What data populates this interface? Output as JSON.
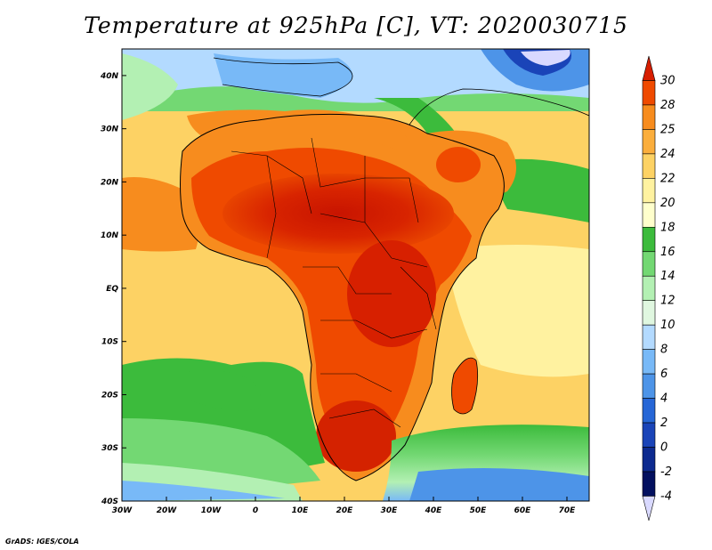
{
  "title": "Temperature at 925hPa [C], VT: 2020030715",
  "credit": "GrADS: IGES/COLA",
  "map": {
    "projection": "lat-lon",
    "lon_range": [
      -30,
      75
    ],
    "lat_range": [
      -40,
      45
    ],
    "lat_ticks": [
      {
        "value": 40,
        "label": "40N"
      },
      {
        "value": 30,
        "label": "30N"
      },
      {
        "value": 20,
        "label": "20N"
      },
      {
        "value": 10,
        "label": "10N"
      },
      {
        "value": 0,
        "label": "EQ"
      },
      {
        "value": -10,
        "label": "10S"
      },
      {
        "value": -20,
        "label": "20S"
      },
      {
        "value": -30,
        "label": "30S"
      },
      {
        "value": -40,
        "label": "40S"
      }
    ],
    "lon_ticks": [
      {
        "value": -30,
        "label": "30W"
      },
      {
        "value": -20,
        "label": "20W"
      },
      {
        "value": -10,
        "label": "10W"
      },
      {
        "value": 0,
        "label": "0"
      },
      {
        "value": 10,
        "label": "10E"
      },
      {
        "value": 20,
        "label": "20E"
      },
      {
        "value": 30,
        "label": "30E"
      },
      {
        "value": 40,
        "label": "40E"
      },
      {
        "value": 50,
        "label": "50E"
      },
      {
        "value": 60,
        "label": "60E"
      },
      {
        "value": 70,
        "label": "70E"
      }
    ]
  },
  "colorbar": {
    "levels": [
      "30",
      "28",
      "25",
      "24",
      "22",
      "20",
      "18",
      "16",
      "14",
      "12",
      "10",
      "8",
      "6",
      "4",
      "2",
      "0",
      "-2",
      "-4"
    ],
    "colors": [
      "#d71e00",
      "#ef4a00",
      "#f78c1e",
      "#fbae3c",
      "#fdd264",
      "#fff2a0",
      "#ffffcc",
      "#3cbb3c",
      "#73d873",
      "#b3f0b3",
      "#e0f7e0",
      "#b3daff",
      "#78b9f7",
      "#4d94e8",
      "#2666d6",
      "#1a44b8",
      "#0d2a8f",
      "#03105f",
      "#d9d9ff"
    ]
  }
}
